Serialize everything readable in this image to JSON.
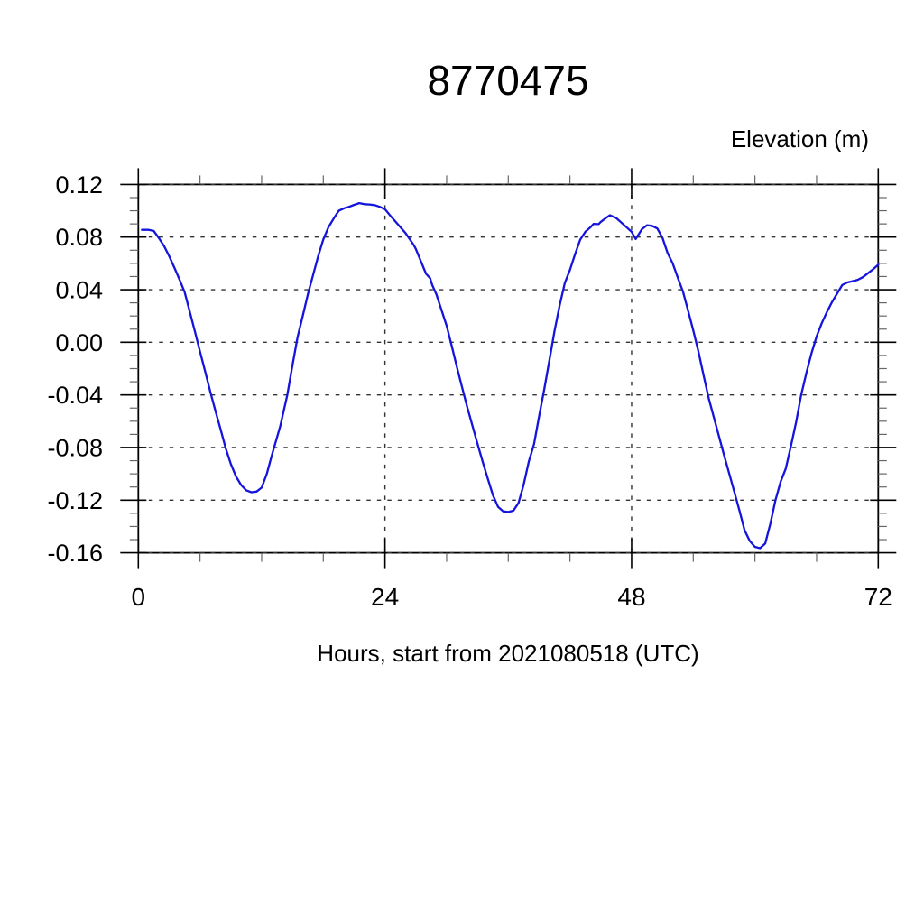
{
  "page": {
    "background": "#ffffff"
  },
  "chart_data": {
    "type": "line",
    "title": "8770475",
    "y_axis_label": "Elevation (m)",
    "x_axis_label": "Hours, start from 2021080518 (UTC)",
    "xlim": [
      0,
      72
    ],
    "ylim": [
      -0.16,
      0.12
    ],
    "x_ticks": {
      "major_values": [
        0,
        24,
        48,
        72
      ],
      "major_labels": [
        "0",
        "24",
        "48",
        "72"
      ],
      "minor_step": 6
    },
    "y_ticks": {
      "major_values": [
        0.12,
        0.08,
        0.04,
        0,
        -0.04,
        -0.08,
        -0.12,
        -0.16
      ],
      "major_labels": [
        "0.12",
        "0.08",
        "0.04",
        "0.00",
        "-0.04",
        "-0.08",
        "-0.12",
        "-0.16"
      ],
      "minor_step": 0.01
    },
    "grid": {
      "style": "dashed",
      "horizontal_values": [
        0.12,
        0.08,
        0.04,
        0,
        -0.04,
        -0.08,
        -0.12,
        -0.16
      ],
      "vertical_values": [
        24,
        48
      ]
    },
    "legend": null,
    "colors": {
      "line": "#1414dd",
      "grid": "#333333",
      "frame": "#000000",
      "major_tick": "#000000",
      "minor_tick": "#666666",
      "text": "#000000"
    },
    "series": [
      {
        "name": "elevation",
        "points": [
          [
            0.35,
            0.0855
          ],
          [
            1,
            0.0855
          ],
          [
            1.5,
            0.0847
          ],
          [
            2,
            0.0792
          ],
          [
            2.5,
            0.0732
          ],
          [
            3,
            0.0655
          ],
          [
            3.5,
            0.0568
          ],
          [
            4,
            0.0478
          ],
          [
            4.5,
            0.0382
          ],
          [
            5,
            0.0235
          ],
          [
            5.5,
            0.0085
          ],
          [
            6,
            -0.007
          ],
          [
            6.5,
            -0.022
          ],
          [
            7,
            -0.0375
          ],
          [
            7.5,
            -0.052
          ],
          [
            8,
            -0.066
          ],
          [
            8.5,
            -0.0805
          ],
          [
            9,
            -0.0925
          ],
          [
            9.5,
            -0.102
          ],
          [
            10,
            -0.1085
          ],
          [
            10.5,
            -0.1125
          ],
          [
            11,
            -0.114
          ],
          [
            11.5,
            -0.1135
          ],
          [
            12,
            -0.1105
          ],
          [
            12.5,
            -0.1
          ],
          [
            13,
            -0.0855
          ],
          [
            13.8,
            -0.064
          ],
          [
            14.5,
            -0.04
          ],
          [
            15,
            -0.0175
          ],
          [
            15.5,
            0.004
          ],
          [
            16,
            0.02
          ],
          [
            16.5,
            0.0365
          ],
          [
            17,
            0.051
          ],
          [
            17.5,
            0.0655
          ],
          [
            18,
            0.0782
          ],
          [
            18.5,
            0.0875
          ],
          [
            19,
            0.094
          ],
          [
            19.5,
            0.1
          ],
          [
            20,
            0.1018
          ],
          [
            20.5,
            0.103
          ],
          [
            21,
            0.1045
          ],
          [
            21.5,
            0.1058
          ],
          [
            22,
            0.105
          ],
          [
            22.5,
            0.1048
          ],
          [
            23,
            0.1043
          ],
          [
            23.5,
            0.103
          ],
          [
            24,
            0.1012
          ],
          [
            24.5,
            0.0965
          ],
          [
            25,
            0.092
          ],
          [
            25.5,
            0.0875
          ],
          [
            26,
            0.083
          ],
          [
            26.8,
            0.074
          ],
          [
            27,
            0.071
          ],
          [
            27.5,
            0.0615
          ],
          [
            28,
            0.052
          ],
          [
            28.4,
            0.0487
          ],
          [
            28.6,
            0.0435
          ],
          [
            29,
            0.0365
          ],
          [
            29.5,
            0.0245
          ],
          [
            30,
            0.0125
          ],
          [
            30.5,
            -0.003
          ],
          [
            31,
            -0.019
          ],
          [
            31.5,
            -0.034
          ],
          [
            32,
            -0.049
          ],
          [
            32.5,
            -0.063
          ],
          [
            33,
            -0.077
          ],
          [
            33.5,
            -0.0905
          ],
          [
            34,
            -0.1035
          ],
          [
            34.5,
            -0.116
          ],
          [
            35,
            -0.125
          ],
          [
            35.5,
            -0.1285
          ],
          [
            36,
            -0.129
          ],
          [
            36.5,
            -0.128
          ],
          [
            37,
            -0.122
          ],
          [
            37.5,
            -0.108
          ],
          [
            38,
            -0.0905
          ],
          [
            38.5,
            -0.0775
          ],
          [
            39,
            -0.056
          ],
          [
            39.5,
            -0.0355
          ],
          [
            40,
            -0.0135
          ],
          [
            40.5,
            0.0085
          ],
          [
            41,
            0.028
          ],
          [
            41.5,
            0.045
          ],
          [
            42,
            0.055
          ],
          [
            42.5,
            0.067
          ],
          [
            43,
            0.078
          ],
          [
            43.5,
            0.084
          ],
          [
            44,
            0.0875
          ],
          [
            44.3,
            0.09
          ],
          [
            44.8,
            0.0898
          ],
          [
            45,
            0.0915
          ],
          [
            45.5,
            0.0945
          ],
          [
            45.9,
            0.0966
          ],
          [
            46.5,
            0.0945
          ],
          [
            47,
            0.091
          ],
          [
            47.5,
            0.0875
          ],
          [
            48,
            0.084
          ],
          [
            48.4,
            0.0785
          ],
          [
            49,
            0.086
          ],
          [
            49.5,
            0.089
          ],
          [
            50,
            0.0885
          ],
          [
            50.5,
            0.0865
          ],
          [
            51,
            0.0795
          ],
          [
            51.5,
            0.068
          ],
          [
            52,
            0.06
          ],
          [
            52.5,
            0.049
          ],
          [
            53,
            0.0385
          ],
          [
            53.5,
            0.024
          ],
          [
            54,
            0.009
          ],
          [
            54.5,
            -0.007
          ],
          [
            55,
            -0.025
          ],
          [
            55.5,
            -0.0425
          ],
          [
            56,
            -0.057
          ],
          [
            56.5,
            -0.0715
          ],
          [
            57,
            -0.086
          ],
          [
            57.5,
            -0.1
          ],
          [
            58,
            -0.114
          ],
          [
            58.5,
            -0.128
          ],
          [
            59,
            -0.143
          ],
          [
            59.5,
            -0.151
          ],
          [
            60,
            -0.1555
          ],
          [
            60.5,
            -0.1565
          ],
          [
            61,
            -0.153
          ],
          [
            61.5,
            -0.138
          ],
          [
            62,
            -0.12
          ],
          [
            62.5,
            -0.106
          ],
          [
            63,
            -0.096
          ],
          [
            63.5,
            -0.079
          ],
          [
            64,
            -0.061
          ],
          [
            64.5,
            -0.04
          ],
          [
            65,
            -0.0235
          ],
          [
            65.5,
            -0.0085
          ],
          [
            66,
            0.0045
          ],
          [
            66.5,
            0.0145
          ],
          [
            67,
            0.023
          ],
          [
            67.5,
            0.0305
          ],
          [
            68,
            0.037
          ],
          [
            68.5,
            0.0435
          ],
          [
            69,
            0.0455
          ],
          [
            69.5,
            0.0465
          ],
          [
            70,
            0.0475
          ],
          [
            70.5,
            0.0495
          ],
          [
            71,
            0.0525
          ],
          [
            71.5,
            0.0555
          ],
          [
            72,
            0.059
          ]
        ]
      }
    ]
  }
}
